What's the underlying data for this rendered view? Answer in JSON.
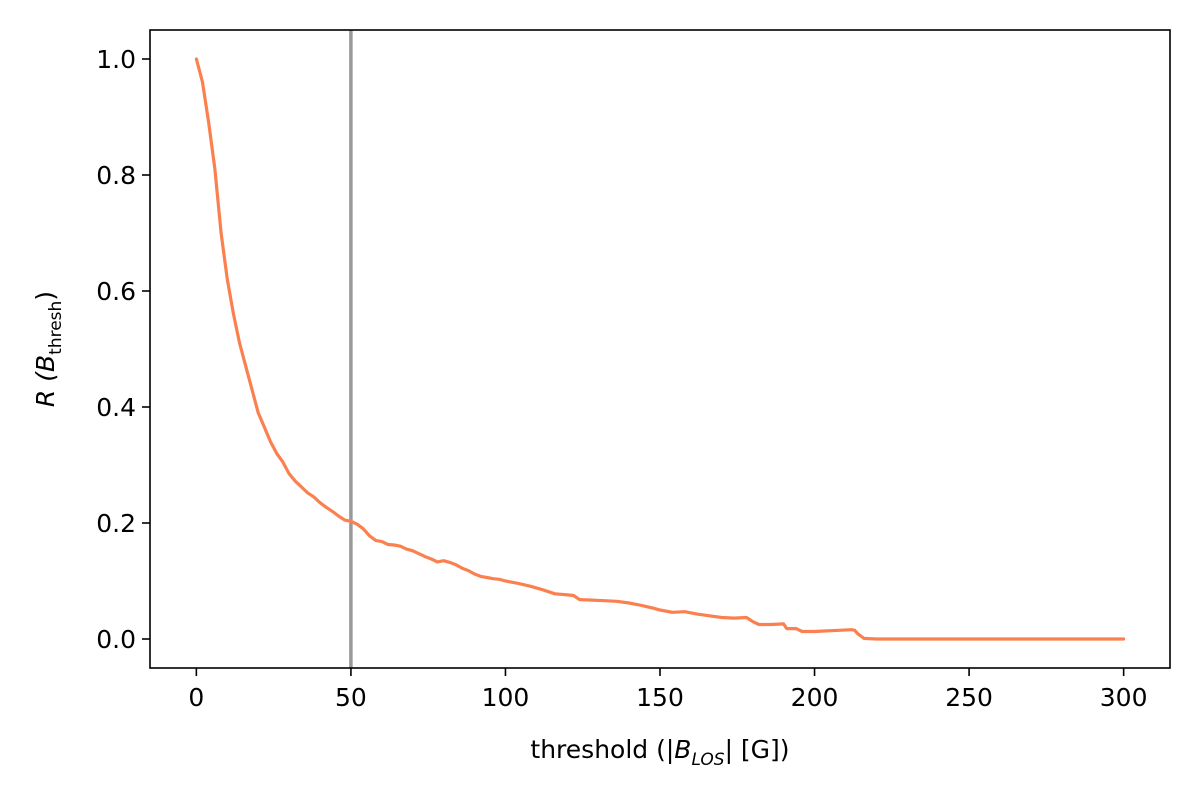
{
  "chart_data": {
    "type": "line",
    "title": "",
    "xlabel": {
      "prefix": "threshold (|",
      "symbol": "B",
      "subscript": "LOS",
      "suffix": "| [G])"
    },
    "ylabel": {
      "prefix": "R (",
      "symbol": "B",
      "subscript": "thresh",
      "suffix": ")"
    },
    "xlim": [
      -15,
      315
    ],
    "ylim": [
      -0.05,
      1.05
    ],
    "xticks": [
      0,
      50,
      100,
      150,
      200,
      250,
      300
    ],
    "yticks": [
      0.0,
      0.2,
      0.4,
      0.6,
      0.8,
      1.0
    ],
    "xtick_labels": [
      "0",
      "50",
      "100",
      "150",
      "200",
      "250",
      "300"
    ],
    "ytick_labels": [
      "0.0",
      "0.2",
      "0.4",
      "0.6",
      "0.8",
      "1.0"
    ],
    "grid": false,
    "legend": "none",
    "reference_line": {
      "axis": "x",
      "value": 50,
      "color": "#999999"
    },
    "series": [
      {
        "color": "#fb8050",
        "x": [
          0,
          2,
          4,
          6,
          8,
          10,
          12,
          14,
          16,
          18,
          20,
          22,
          24,
          26,
          28,
          30,
          32,
          34,
          36,
          38,
          40,
          42,
          44,
          46,
          48,
          50,
          52,
          54,
          56,
          58,
          60,
          62,
          64,
          66,
          68,
          70,
          72,
          74,
          76,
          78,
          80,
          82,
          84,
          86,
          88,
          90,
          92,
          94,
          96,
          98,
          100,
          104,
          108,
          112,
          116,
          120,
          122,
          124,
          128,
          132,
          136,
          140,
          144,
          148,
          150,
          154,
          158,
          162,
          166,
          170,
          174,
          178,
          180,
          182,
          186,
          190,
          191,
          194,
          196,
          200,
          204,
          208,
          212,
          213,
          214,
          216,
          220,
          230,
          240,
          250,
          260,
          270,
          280,
          290,
          300
        ],
        "y": [
          1.0,
          0.96,
          0.89,
          0.81,
          0.7,
          0.62,
          0.56,
          0.51,
          0.47,
          0.43,
          0.39,
          0.365,
          0.34,
          0.32,
          0.305,
          0.285,
          0.272,
          0.262,
          0.252,
          0.245,
          0.235,
          0.227,
          0.22,
          0.212,
          0.205,
          0.203,
          0.198,
          0.19,
          0.178,
          0.17,
          0.168,
          0.163,
          0.162,
          0.16,
          0.155,
          0.152,
          0.147,
          0.142,
          0.138,
          0.133,
          0.135,
          0.132,
          0.128,
          0.122,
          0.118,
          0.112,
          0.108,
          0.106,
          0.104,
          0.103,
          0.1,
          0.096,
          0.091,
          0.085,
          0.078,
          0.076,
          0.075,
          0.068,
          0.067,
          0.066,
          0.065,
          0.062,
          0.058,
          0.053,
          0.05,
          0.046,
          0.047,
          0.043,
          0.04,
          0.037,
          0.036,
          0.037,
          0.03,
          0.025,
          0.025,
          0.026,
          0.018,
          0.018,
          0.013,
          0.013,
          0.014,
          0.015,
          0.016,
          0.015,
          0.009,
          0.001,
          0.0,
          0.0,
          0.0,
          0.0,
          0.0,
          0.0,
          0.0,
          0.0,
          0.0
        ]
      }
    ]
  }
}
